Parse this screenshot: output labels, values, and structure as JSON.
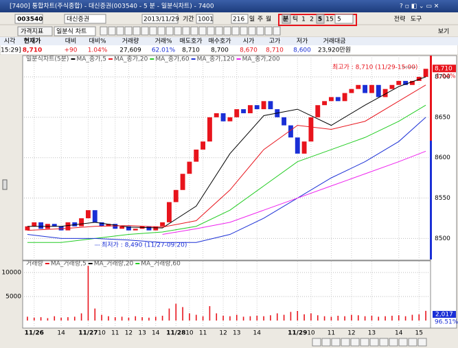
{
  "window": {
    "title": "[7400] 통합차트(주식종합) - 대신증권(003540 - 5 분 - 일분식차트) - 7400"
  },
  "toolbar": {
    "code": "003540",
    "name": "대신증권",
    "date": "2013/11/29",
    "period_label": "기간",
    "period": "1001",
    "count": "216",
    "periods": [
      "일",
      "주",
      "월",
      "분",
      "틱"
    ],
    "intervals": [
      "1",
      "2",
      "5",
      "15"
    ],
    "interval_value": "5",
    "buttons": [
      "전략",
      "도구"
    ],
    "indicator": "가격지표",
    "chart_kind": "일분식 차트",
    "view": "보기"
  },
  "info": {
    "headers": [
      "시각",
      "현재가",
      "대비",
      "대비%",
      "거래량",
      "거래%",
      "매도호가",
      "매수호가",
      "시가",
      "고가",
      "저가",
      "거래대금"
    ],
    "values": [
      "[15:29]",
      "8,710",
      "+90",
      "1.04%",
      "27,609",
      "62.01%",
      "8,710",
      "8,700",
      "8,670",
      "8,710",
      "8,600",
      "23,920만원"
    ]
  },
  "chart_data": [
    {
      "type": "candlestick",
      "title": "일분식차트(5분)",
      "open": [
        8510,
        8515,
        8520,
        8512,
        8518,
        8515,
        8510,
        8520,
        8515,
        8525,
        8535,
        8520,
        8515,
        8518,
        8512,
        8515,
        8510,
        8512,
        8515,
        8510,
        8515,
        8520,
        8545,
        8560,
        8580,
        8595,
        8610,
        8620,
        8650,
        8655,
        8645,
        8650,
        8660,
        8655,
        8665,
        8660,
        8670,
        8660,
        8650,
        8640,
        8625,
        8605,
        8620,
        8650,
        8665,
        8670,
        8675,
        8670,
        8680,
        8685,
        8690,
        8680,
        8690,
        8675,
        8685,
        8690,
        8695,
        8690,
        8695,
        8700
      ],
      "close": [
        8515,
        8520,
        8512,
        8518,
        8515,
        8510,
        8520,
        8515,
        8525,
        8535,
        8520,
        8515,
        8518,
        8512,
        8515,
        8510,
        8512,
        8515,
        8510,
        8515,
        8520,
        8545,
        8560,
        8580,
        8595,
        8610,
        8620,
        8650,
        8655,
        8645,
        8650,
        8660,
        8655,
        8665,
        8660,
        8670,
        8660,
        8650,
        8640,
        8625,
        8605,
        8620,
        8650,
        8665,
        8670,
        8675,
        8670,
        8680,
        8685,
        8690,
        8680,
        8690,
        8675,
        8685,
        8690,
        8695,
        8690,
        8695,
        8700,
        8710
      ],
      "up_color": "#e8141c",
      "down_color": "#1a2fd6",
      "ma_x": [
        0,
        5,
        10,
        15,
        20,
        25,
        30,
        35,
        40,
        45,
        50,
        55,
        59
      ],
      "series": [
        {
          "name": "MA_종가,5",
          "color": "#000000",
          "values": [
            8515,
            8515,
            8520,
            8514,
            8513,
            8540,
            8605,
            8652,
            8660,
            8640,
            8665,
            8688,
            8700
          ]
        },
        {
          "name": "MA_종가,20",
          "color": "#e8141c",
          "values": [
            8510,
            8512,
            8515,
            8516,
            8514,
            8522,
            8560,
            8610,
            8640,
            8635,
            8645,
            8670,
            8690
          ]
        },
        {
          "name": "MA_종가,60",
          "color": "#22cc22",
          "values": [
            8495,
            8495,
            8500,
            8505,
            8508,
            8515,
            8535,
            8565,
            8595,
            8610,
            8625,
            8645,
            8665
          ]
        },
        {
          "name": "MA_종가,120",
          "color": "#1a2fd6",
          "values": [
            8505,
            8500,
            8500,
            8498,
            8495,
            8495,
            8505,
            8525,
            8550,
            8575,
            8595,
            8620,
            8650
          ]
        },
        {
          "name": "MA_종가,200",
          "color": "#ee22ee",
          "values": [
            null,
            null,
            null,
            null,
            8505,
            8512,
            8520,
            8535,
            8550,
            8565,
            8580,
            8595,
            8608
          ]
        }
      ],
      "ylim": [
        8474,
        8717
      ],
      "yticks": [
        8500,
        8550,
        8600,
        8650,
        8700
      ],
      "high_note": "최고가 : 8,710 (11/29-15:00)",
      "low_note": "최저가 : 8,490 (11/27-09:20)",
      "last_label": "8,710",
      "change_label": "1.04%"
    },
    {
      "type": "bar",
      "title": "거래량",
      "color": "#e8141c",
      "categories": [
        null,
        "11/26",
        null,
        null,
        null,
        "14",
        null,
        null,
        null,
        "11/27",
        null,
        "10",
        null,
        "11",
        null,
        "12",
        null,
        "13",
        null,
        "14",
        null,
        null,
        "11/28",
        null,
        "10",
        null,
        "11",
        null,
        null,
        "12",
        null,
        "13",
        null,
        null,
        "14",
        null,
        null,
        null,
        null,
        null,
        "11/29",
        null,
        "10",
        null,
        null,
        "11",
        null,
        null,
        "12",
        null,
        null,
        "13",
        null,
        null,
        null,
        "14",
        null,
        null,
        "15",
        null
      ],
      "values": [
        800,
        600,
        700,
        500,
        900,
        600,
        700,
        800,
        1500,
        11400,
        2500,
        1200,
        900,
        700,
        800,
        600,
        900,
        700,
        600,
        800,
        1000,
        2500,
        3500,
        2800,
        1500,
        1200,
        900,
        3000,
        1500,
        1000,
        900,
        1200,
        800,
        900,
        1000,
        900,
        1100,
        1500,
        1200,
        1800,
        2000,
        1300,
        1500,
        1100,
        900,
        800,
        1000,
        900,
        1200,
        1100,
        900,
        1000,
        800,
        900,
        1000,
        1100,
        900,
        1200,
        1300,
        2017
      ],
      "legend": [
        {
          "name": "MA_거래량,5",
          "color": "#e8141c"
        },
        {
          "name": "MA_거래량,20",
          "color": "#000000"
        },
        {
          "name": "MA_거래량,60",
          "color": "#22cc22"
        }
      ],
      "ylim": [
        0,
        12000
      ],
      "yticks": [
        5000,
        10000
      ],
      "last_label": "2,017",
      "pct_label": "96.51%"
    }
  ]
}
